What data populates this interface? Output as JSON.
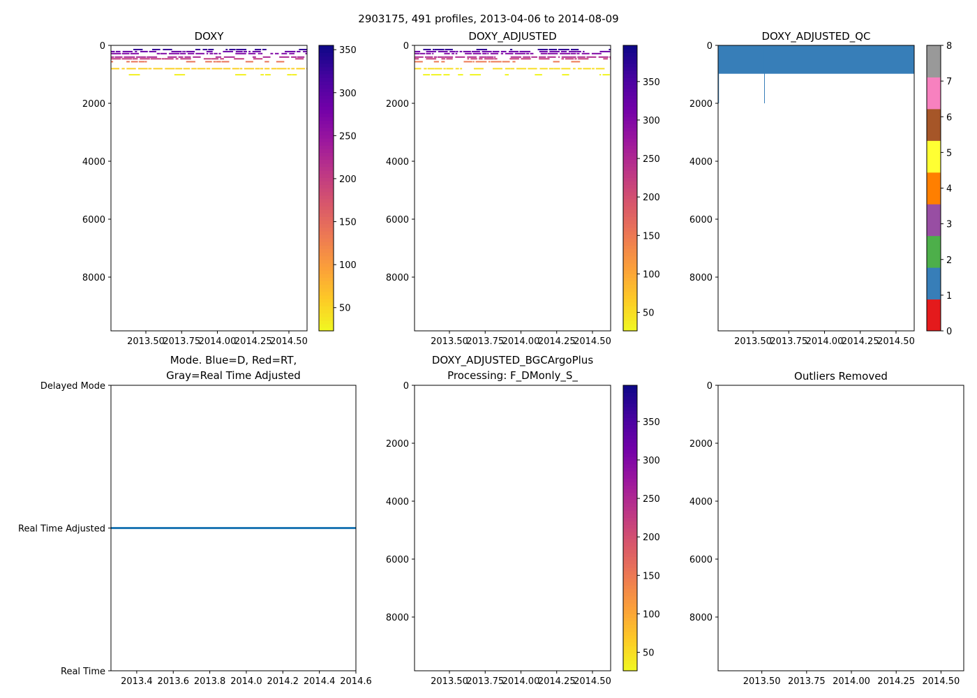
{
  "title": "2903175, 491 profiles, 2013-04-06 to 2014-08-09",
  "chart_data": [
    {
      "type": "heatmap",
      "title": "DOXY",
      "xlim": [
        2013.256,
        2014.627
      ],
      "ylim": [
        9855,
        0
      ],
      "xticks": [
        2013.5,
        2013.75,
        2014.0,
        2014.25,
        2014.5
      ],
      "xtick_labels": [
        "2013.50",
        "2013.75",
        "2014.00",
        "2014.25",
        "2014.50"
      ],
      "yticks": [
        0,
        2000,
        4000,
        6000,
        8000
      ],
      "yticks_labels": [
        "0",
        "2000",
        "4000",
        "6000",
        "8000"
      ],
      "colormap": "plasma_r",
      "colorbar": {
        "vmin": 23,
        "vmax": 355,
        "ticks": [
          50,
          100,
          150,
          200,
          250,
          300,
          350
        ]
      },
      "bands": [
        {
          "depth": 120,
          "value": 330,
          "density": 0.5
        },
        {
          "depth": 190,
          "value": 290,
          "density": 0.85
        },
        {
          "depth": 260,
          "value": 270,
          "density": 0.8
        },
        {
          "depth": 380,
          "value": 230,
          "density": 0.8
        },
        {
          "depth": 440,
          "value": 200,
          "density": 0.7
        },
        {
          "depth": 540,
          "value": 140,
          "density": 0.6
        },
        {
          "depth": 780,
          "value": 55,
          "density": 0.9
        },
        {
          "depth": 990,
          "value": 30,
          "density": 0.5
        }
      ]
    },
    {
      "type": "heatmap",
      "title": "DOXY_ADJUSTED",
      "xlim": [
        2013.256,
        2014.627
      ],
      "ylim": [
        9855,
        0
      ],
      "xticks": [
        2013.5,
        2013.75,
        2014.0,
        2014.25,
        2014.5
      ],
      "xtick_labels": [
        "2013.50",
        "2013.75",
        "2014.00",
        "2014.25",
        "2014.50"
      ],
      "yticks": [
        0,
        2000,
        4000,
        6000,
        8000
      ],
      "yticks_labels": [
        "0",
        "2000",
        "4000",
        "6000",
        "8000"
      ],
      "colormap": "plasma_r",
      "colorbar": {
        "vmin": 26,
        "vmax": 397,
        "ticks": [
          50,
          100,
          150,
          200,
          250,
          300,
          350
        ]
      },
      "bands": [
        {
          "depth": 120,
          "value": 370,
          "density": 0.5
        },
        {
          "depth": 190,
          "value": 320,
          "density": 0.85
        },
        {
          "depth": 260,
          "value": 300,
          "density": 0.8
        },
        {
          "depth": 380,
          "value": 250,
          "density": 0.8
        },
        {
          "depth": 440,
          "value": 220,
          "density": 0.7
        },
        {
          "depth": 540,
          "value": 150,
          "density": 0.6
        },
        {
          "depth": 780,
          "value": 50,
          "density": 0.9
        },
        {
          "depth": 990,
          "value": 30,
          "density": 0.5
        }
      ]
    },
    {
      "type": "heatmap",
      "title": "DOXY_ADJUSTED_QC",
      "xlim": [
        2013.256,
        2014.627
      ],
      "ylim": [
        9855,
        0
      ],
      "xticks": [
        2013.5,
        2013.75,
        2014.0,
        2014.25,
        2014.5
      ],
      "xtick_labels": [
        "2013.50",
        "2013.75",
        "2014.00",
        "2014.25",
        "2014.50"
      ],
      "yticks": [
        0,
        2000,
        4000,
        6000,
        8000
      ],
      "yticks_labels": [
        "0",
        "2000",
        "4000",
        "6000",
        "8000"
      ],
      "colormap": "qc",
      "qc_colors": [
        "#e41a1c",
        "#377eb8",
        "#4daf4a",
        "#984ea3",
        "#ff7f00",
        "#ffff33",
        "#a65628",
        "#f781bf",
        "#999999"
      ],
      "colorbar": {
        "vmin": 0,
        "vmax": 8,
        "ticks": [
          0,
          1,
          2,
          3,
          4,
          5,
          6,
          7,
          8
        ]
      },
      "blocks": [
        {
          "x0": 2013.256,
          "x1": 2014.627,
          "depth0": 0,
          "depth1": 980,
          "value": 1
        },
        {
          "x0": 2013.256,
          "x1": 2013.262,
          "depth0": 0,
          "depth1": 2000,
          "value": 1
        },
        {
          "x0": 2013.578,
          "x1": 2013.582,
          "depth0": 0,
          "depth1": 2000,
          "value": 1
        }
      ]
    },
    {
      "type": "line",
      "title": "Mode. Blue=D, Red=RT,",
      "title2": "Gray=Real Time Adjusted",
      "xlim": [
        2013.259,
        2014.6
      ],
      "xticks": [
        2013.4,
        2013.6,
        2013.8,
        2014.0,
        2014.2,
        2014.4,
        2014.6
      ],
      "xtick_labels": [
        "2013.4",
        "2013.6",
        "2013.8",
        "2014.0",
        "2014.2",
        "2014.4",
        "2014.6"
      ],
      "ycategories": [
        "Real Time",
        "Real Time Adjusted",
        "Delayed Mode"
      ],
      "series": [
        {
          "name": "mode",
          "color": "#1f77b4",
          "x": [
            2013.259,
            2014.6
          ],
          "y": [
            "Real Time Adjusted",
            "Real Time Adjusted"
          ]
        }
      ]
    },
    {
      "type": "heatmap",
      "title": "DOXY_ADJUSTED_BGCArgoPlus",
      "title2": "Processing: F_DMonly_S_",
      "xlim": [
        2013.256,
        2014.627
      ],
      "ylim": [
        9855,
        0
      ],
      "xticks": [
        2013.5,
        2013.75,
        2014.0,
        2014.25,
        2014.5
      ],
      "xtick_labels": [
        "2013.50",
        "2013.75",
        "2014.00",
        "2014.25",
        "2014.50"
      ],
      "yticks": [
        0,
        2000,
        4000,
        6000,
        8000
      ],
      "yticks_labels": [
        "0",
        "2000",
        "4000",
        "6000",
        "8000"
      ],
      "colormap": "plasma_r",
      "colorbar": {
        "vmin": 26,
        "vmax": 397,
        "ticks": [
          50,
          100,
          150,
          200,
          250,
          300,
          350
        ]
      },
      "bands": []
    },
    {
      "type": "heatmap",
      "title": "Outliers Removed",
      "xlim": [
        2013.256,
        2014.627
      ],
      "ylim": [
        9855,
        0
      ],
      "xticks": [
        2013.5,
        2013.75,
        2014.0,
        2014.25,
        2014.5
      ],
      "xtick_labels": [
        "2013.50",
        "2013.75",
        "2014.00",
        "2014.25",
        "2014.50"
      ],
      "yticks": [
        0,
        2000,
        4000,
        6000,
        8000
      ],
      "yticks_labels": [
        "0",
        "2000",
        "4000",
        "6000",
        "8000"
      ],
      "bands": []
    }
  ]
}
